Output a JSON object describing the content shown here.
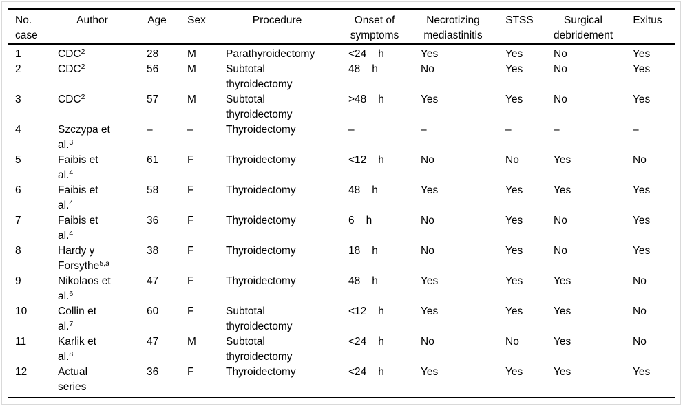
{
  "colors": {
    "text": "#000000",
    "rule": "#000000",
    "frame_border": "#d9d9d9",
    "background": "#ffffff"
  },
  "table": {
    "headers": [
      {
        "id": "no",
        "label": "No.\ncase"
      },
      {
        "id": "author",
        "label": "Author"
      },
      {
        "id": "age",
        "label": "Age"
      },
      {
        "id": "sex",
        "label": "Sex"
      },
      {
        "id": "procedure",
        "label": "Procedure"
      },
      {
        "id": "onset",
        "label": "Onset of\nsymptoms"
      },
      {
        "id": "nm",
        "label": "Necrotizing\nmediastinitis"
      },
      {
        "id": "stss",
        "label": "STSS"
      },
      {
        "id": "sd",
        "label": "Surgical\ndebridement"
      },
      {
        "id": "exitus",
        "label": "Exitus"
      }
    ],
    "rows": [
      {
        "no": "1",
        "author": [
          {
            "t": "CDC",
            "s": "2"
          }
        ],
        "age": "28",
        "sex": "M",
        "procedure": [
          "Parathyroidectomy"
        ],
        "onset": {
          "v": "<24",
          "u": "h"
        },
        "nm": "Yes",
        "stss": "Yes",
        "sd": "No",
        "exitus": "Yes"
      },
      {
        "no": "2",
        "author": [
          {
            "t": "CDC",
            "s": "2"
          }
        ],
        "age": "56",
        "sex": "M",
        "procedure": [
          "Subtotal",
          "thyroidectomy"
        ],
        "onset": {
          "v": "48",
          "u": "h"
        },
        "nm": "No",
        "stss": "Yes",
        "sd": "No",
        "exitus": "Yes"
      },
      {
        "no": "3",
        "author": [
          {
            "t": "CDC",
            "s": "2"
          }
        ],
        "age": "57",
        "sex": "M",
        "procedure": [
          "Subtotal",
          "thyroidectomy"
        ],
        "onset": {
          "v": ">48",
          "u": "h"
        },
        "nm": "Yes",
        "stss": "Yes",
        "sd": "No",
        "exitus": "Yes"
      },
      {
        "no": "4",
        "author": [
          {
            "t": "Szczypa et"
          },
          {
            "t": "al.",
            "s": "3"
          }
        ],
        "age": "–",
        "sex": "–",
        "procedure": [
          "Thyroidectomy"
        ],
        "onset": {
          "v": "–",
          "u": ""
        },
        "nm": "–",
        "stss": "–",
        "sd": "–",
        "exitus": "–"
      },
      {
        "no": "5",
        "author": [
          {
            "t": "Faibis et"
          },
          {
            "t": "al.",
            "s": "4"
          }
        ],
        "age": "61",
        "sex": "F",
        "procedure": [
          "Thyroidectomy"
        ],
        "onset": {
          "v": "<12",
          "u": "h"
        },
        "nm": "No",
        "stss": "No",
        "sd": "Yes",
        "exitus": "No"
      },
      {
        "no": "6",
        "author": [
          {
            "t": "Faibis et"
          },
          {
            "t": "al.",
            "s": "4"
          }
        ],
        "age": "58",
        "sex": "F",
        "procedure": [
          "Thyroidectomy"
        ],
        "onset": {
          "v": "48",
          "u": "h"
        },
        "nm": "Yes",
        "stss": "Yes",
        "sd": "Yes",
        "exitus": "Yes"
      },
      {
        "no": "7",
        "author": [
          {
            "t": "Faibis et"
          },
          {
            "t": "al.",
            "s": "4"
          }
        ],
        "age": "36",
        "sex": "F",
        "procedure": [
          "Thyroidectomy"
        ],
        "onset": {
          "v": "6",
          "u": "h"
        },
        "nm": "No",
        "stss": "Yes",
        "sd": "No",
        "exitus": "Yes"
      },
      {
        "no": "8",
        "author": [
          {
            "t": "Hardy y"
          },
          {
            "t": "Forsythe",
            "s": "5,a"
          }
        ],
        "age": "38",
        "sex": "F",
        "procedure": [
          "Thyroidectomy"
        ],
        "onset": {
          "v": "18",
          "u": "h"
        },
        "nm": "No",
        "stss": "Yes",
        "sd": "No",
        "exitus": "Yes"
      },
      {
        "no": "9",
        "author": [
          {
            "t": "Nikolaos et"
          },
          {
            "t": "al.",
            "s": "6"
          }
        ],
        "age": "47",
        "sex": "F",
        "procedure": [
          "Thyroidectomy"
        ],
        "onset": {
          "v": "48",
          "u": "h"
        },
        "nm": "Yes",
        "stss": "Yes",
        "sd": "Yes",
        "exitus": "No"
      },
      {
        "no": "10",
        "author": [
          {
            "t": "Collin et"
          },
          {
            "t": "al.",
            "s": "7"
          }
        ],
        "age": "60",
        "sex": "F",
        "procedure": [
          "Subtotal",
          "thyroidectomy"
        ],
        "onset": {
          "v": "<12",
          "u": "h"
        },
        "nm": "Yes",
        "stss": "Yes",
        "sd": "Yes",
        "exitus": "No"
      },
      {
        "no": "11",
        "author": [
          {
            "t": "Karlik et"
          },
          {
            "t": "al.",
            "s": "8"
          }
        ],
        "age": "47",
        "sex": "M",
        "procedure": [
          "Subtotal",
          "thyroidectomy"
        ],
        "onset": {
          "v": "<24",
          "u": "h"
        },
        "nm": "No",
        "stss": "No",
        "sd": "Yes",
        "exitus": "No"
      },
      {
        "no": "12",
        "author": [
          {
            "t": "Actual"
          },
          {
            "t": "series"
          }
        ],
        "age": "36",
        "sex": "F",
        "procedure": [
          "Thyroidectomy"
        ],
        "onset": {
          "v": "<24",
          "u": "h"
        },
        "nm": "Yes",
        "stss": "Yes",
        "sd": "Yes",
        "exitus": "Yes"
      }
    ]
  }
}
